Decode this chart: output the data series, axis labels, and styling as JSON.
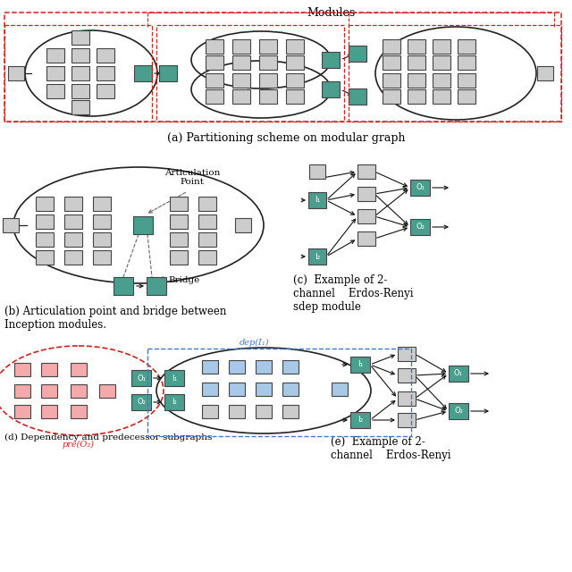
{
  "node_gray": "#cccccc",
  "node_teal": "#4a9e8e",
  "node_pink": "#f4aaaa",
  "node_blue": "#a8c8e8",
  "edge_color": "#222222",
  "dashed_red": "#cc2222",
  "dashed_blue": "#4477cc",
  "bg_color": "#ffffff",
  "title_a": "(a) Partitioning scheme on modular graph",
  "title_b": "(b) Articulation point and bridge between\nInception modules.",
  "title_c": "(c)  Example of 2-\nchannel    Erdos-Renyi\nsdep module",
  "title_d": "(d) Dependency and predecessor subgraphs",
  "title_e": "(e)  Example of 2-\nchannel    Erdos-Renyi"
}
